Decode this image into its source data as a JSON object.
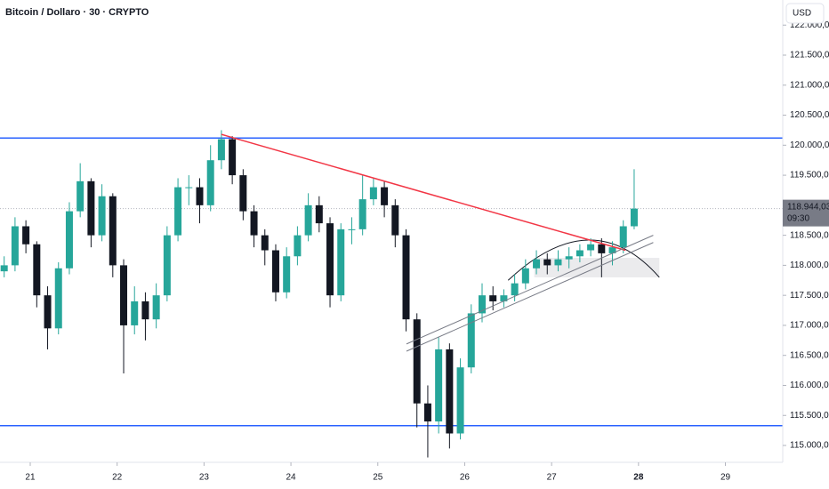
{
  "chart_data": {
    "type": "candlestick",
    "title": "Bitcoin / Dollaro · 30 · CRYPTO",
    "currency": "USD",
    "x": [
      20.7,
      20.825,
      20.95,
      21.075,
      21.2,
      21.325,
      21.45,
      21.575,
      21.7,
      21.825,
      21.95,
      22.075,
      22.2,
      22.325,
      22.45,
      22.575,
      22.7,
      22.825,
      22.95,
      23.075,
      23.2,
      23.325,
      23.45,
      23.575,
      23.7,
      23.825,
      23.95,
      24.075,
      24.2,
      24.325,
      24.45,
      24.575,
      24.7,
      24.825,
      24.95,
      25.075,
      25.2,
      25.325,
      25.45,
      25.575,
      25.7,
      25.825,
      25.95,
      26.075,
      26.2,
      26.325,
      26.45,
      26.575,
      26.7,
      26.825,
      26.95,
      27.075,
      27.2,
      27.325,
      27.45,
      27.575,
      27.7,
      27.825,
      27.95
    ],
    "open": [
      117900,
      118000,
      118650,
      118350,
      117500,
      116950,
      117950,
      118900,
      119400,
      118500,
      119150,
      118000,
      117000,
      117400,
      117100,
      117500,
      118500,
      119300,
      119300,
      119000,
      119750,
      120100,
      119500,
      118900,
      118500,
      118250,
      117550,
      118150,
      118500,
      119000,
      118700,
      117500,
      118600,
      118600,
      119100,
      119300,
      119000,
      118500,
      117100,
      115700,
      115400,
      116600,
      115200,
      116300,
      117200,
      117500,
      117400,
      117500,
      117700,
      117950,
      118100,
      118000,
      118100,
      118150,
      118250,
      118350,
      118200,
      118300,
      118650
    ],
    "high": [
      118150,
      118800,
      118750,
      118400,
      117650,
      118050,
      119050,
      119700,
      119450,
      119350,
      119200,
      118100,
      117650,
      117550,
      117700,
      118650,
      119450,
      119500,
      119450,
      120000,
      120250,
      120150,
      119600,
      119000,
      118600,
      118350,
      118300,
      118650,
      119200,
      119150,
      118800,
      118700,
      118800,
      119500,
      119450,
      119400,
      119100,
      118600,
      117200,
      116000,
      116800,
      116700,
      116450,
      117350,
      117700,
      117650,
      117600,
      117850,
      118100,
      118250,
      118200,
      118250,
      118300,
      118350,
      118450,
      118450,
      118400,
      118750,
      119600
    ],
    "low": [
      117800,
      117900,
      118200,
      117300,
      116600,
      116850,
      117850,
      118800,
      118300,
      118400,
      117800,
      116200,
      116850,
      116750,
      116950,
      117400,
      118400,
      119000,
      118700,
      118900,
      119600,
      119350,
      118750,
      118300,
      118000,
      117400,
      117450,
      118000,
      118400,
      118550,
      117300,
      117400,
      118350,
      118500,
      119000,
      118800,
      118300,
      116900,
      115300,
      114800,
      115200,
      114950,
      115100,
      116200,
      117050,
      117250,
      117300,
      117400,
      117600,
      117850,
      117850,
      117900,
      117950,
      118050,
      118150,
      117800,
      118000,
      118200,
      118600
    ],
    "close": [
      118000,
      118650,
      118350,
      117500,
      116950,
      117950,
      118900,
      119400,
      118500,
      119150,
      118000,
      117000,
      117400,
      117100,
      117500,
      118500,
      119300,
      119300,
      119000,
      119750,
      120100,
      119500,
      118900,
      118500,
      118250,
      117550,
      118150,
      118500,
      119000,
      118700,
      117500,
      118600,
      118600,
      119100,
      119300,
      119000,
      118500,
      117100,
      115700,
      115400,
      116600,
      115200,
      116300,
      117200,
      117500,
      117400,
      117500,
      117700,
      117950,
      118100,
      118000,
      118100,
      118150,
      118250,
      118350,
      118200,
      118300,
      118650,
      118944.03
    ],
    "up_color": "#26a69a",
    "down_color": "#131722",
    "xlim": [
      20.652,
      29.66
    ],
    "xticks": [
      21,
      22,
      23,
      24,
      25,
      26,
      27,
      28,
      29
    ],
    "ylim": [
      114719,
      122418
    ],
    "yticks": [
      {
        "value": 115000,
        "label": "115.000,00"
      },
      {
        "value": 115500,
        "label": "115.500,00"
      },
      {
        "value": 116000,
        "label": "116.000,00"
      },
      {
        "value": 116500,
        "label": "116.500,00"
      },
      {
        "value": 117000,
        "label": "117.000,00"
      },
      {
        "value": 117500,
        "label": "117.500,00"
      },
      {
        "value": 118000,
        "label": "118.000,00"
      },
      {
        "value": 118500,
        "label": "118.500,00"
      },
      {
        "value": 119000,
        "label": "119.000,00"
      },
      {
        "value": 119500,
        "label": "119.500,00"
      },
      {
        "value": 120000,
        "label": "120.000,00"
      },
      {
        "value": 120500,
        "label": "120.500,00"
      },
      {
        "value": 121000,
        "label": "121.000,00"
      },
      {
        "value": 121500,
        "label": "121.500,00"
      },
      {
        "value": 122000,
        "label": "122.000,00"
      }
    ],
    "last_price": {
      "value": 118944.03,
      "label": "118.944,03"
    },
    "countdown": "09:30",
    "hlines": [
      {
        "value": 120120,
        "color": "#2962ff"
      },
      {
        "value": 115330,
        "color": "#2962ff"
      }
    ],
    "trendlines": [
      {
        "x": [
          23.2,
          27.85
        ],
        "y": [
          120180,
          118250
        ],
        "color": "#f23645"
      },
      {
        "x": [
          25.33,
          28.17
        ],
        "y": [
          116570,
          118380
        ],
        "color": "#787b86"
      },
      {
        "x": [
          25.33,
          28.17
        ],
        "y": [
          116690,
          118500
        ],
        "color": "#787b86"
      }
    ],
    "arc": {
      "x": [
        26.5,
        27.42,
        28.24
      ],
      "y": [
        117750,
        118420,
        117800
      ]
    },
    "box": {
      "x": [
        26.8,
        28.24
      ],
      "y": [
        117800,
        118124
      ]
    }
  }
}
